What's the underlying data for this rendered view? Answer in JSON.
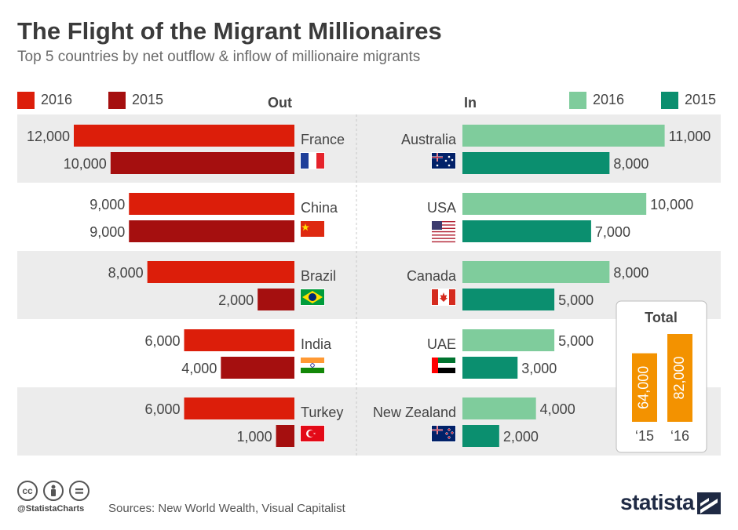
{
  "title": "The Flight of the Migrant Millionaires",
  "subtitle": "Top 5 countries by net outflow & inflow of millionaire migrants",
  "legend": {
    "out": [
      {
        "label": "2016",
        "color": "#dc1e0a"
      },
      {
        "label": "2015",
        "color": "#a50f0f"
      }
    ],
    "in": [
      {
        "label": "2016",
        "color": "#7fcc9c"
      },
      {
        "label": "2015",
        "color": "#0b8f6f"
      }
    ]
  },
  "headers": {
    "out": "Out",
    "in": "In"
  },
  "chart_data": [
    {
      "type": "bar",
      "orientation": "horizontal",
      "panel": "Out",
      "categories": [
        "France",
        "China",
        "Brazil",
        "India",
        "Turkey"
      ],
      "flags": [
        "flag-france-icon",
        "flag-china-icon",
        "flag-brazil-icon",
        "flag-india-icon",
        "flag-turkey-icon"
      ],
      "series": [
        {
          "name": "2016",
          "values": [
            12000,
            9000,
            8000,
            6000,
            6000
          ],
          "labels": [
            "12,000",
            "9,000",
            "8,000",
            "6,000",
            "6,000"
          ],
          "color": "#dc1e0a"
        },
        {
          "name": "2015",
          "values": [
            10000,
            9000,
            2000,
            4000,
            1000
          ],
          "labels": [
            "10,000",
            "9,000",
            "2,000",
            "4,000",
            "1,000"
          ],
          "color": "#a50f0f"
        }
      ]
    },
    {
      "type": "bar",
      "orientation": "horizontal",
      "panel": "In",
      "categories": [
        "Australia",
        "USA",
        "Canada",
        "UAE",
        "New Zealand"
      ],
      "flags": [
        "flag-australia-icon",
        "flag-usa-icon",
        "flag-canada-icon",
        "flag-uae-icon",
        "flag-new-zealand-icon"
      ],
      "series": [
        {
          "name": "2016",
          "values": [
            11000,
            10000,
            8000,
            5000,
            4000
          ],
          "labels": [
            "11,000",
            "10,000",
            "8,000",
            "5,000",
            "4,000"
          ],
          "color": "#7fcc9c"
        },
        {
          "name": "2015",
          "values": [
            8000,
            7000,
            5000,
            3000,
            2000
          ],
          "labels": [
            "8,000",
            "7,000",
            "5,000",
            "3,000",
            "2,000"
          ],
          "color": "#0b8f6f"
        }
      ]
    },
    {
      "type": "bar",
      "orientation": "vertical",
      "title": "Total",
      "categories": [
        "‘15",
        "‘16"
      ],
      "values": [
        64000,
        82000
      ],
      "labels": [
        "64,000",
        "82,000"
      ],
      "color": "#f39200"
    }
  ],
  "footer": {
    "handle": "@StatistaCharts",
    "sources": "Sources: New World Wealth, Visual Capitalist",
    "brand": "statista",
    "cc_icons": [
      "cc-icon",
      "by-icon",
      "nd-icon"
    ]
  }
}
